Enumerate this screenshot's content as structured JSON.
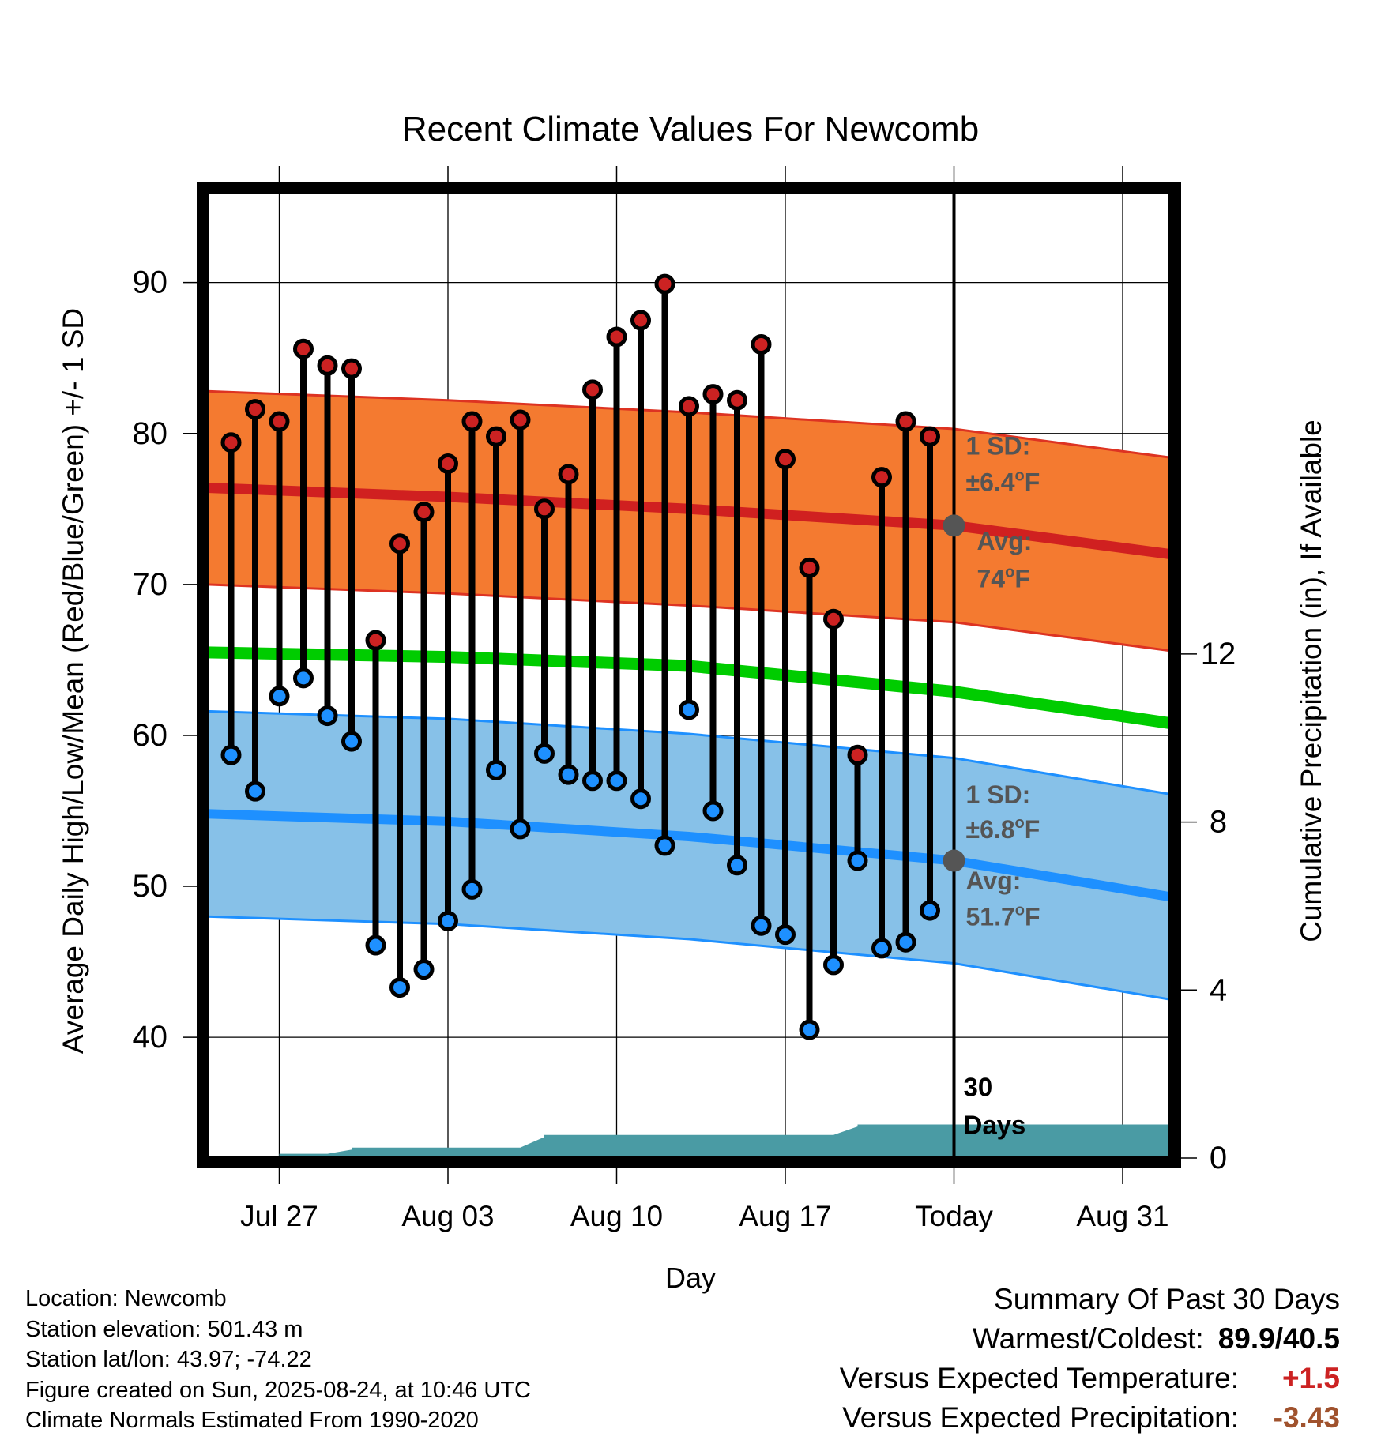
{
  "chart_data": {
    "type": "line",
    "title": "Recent Climate Values For Newcomb",
    "xlabel": "Day",
    "ylabel": "Average Daily High/Low/Mean (Red/Blue/Green) +/- 1 SD",
    "ylabel_right": "Cumulative Precipitation (in), If Available",
    "x_tick_labels": [
      "Jul 27",
      "Aug 03",
      "Aug 10",
      "Aug 17",
      "Today",
      "Aug 31"
    ],
    "x_tick_dates": [
      "2025-07-27",
      "2025-08-03",
      "2025-08-10",
      "2025-08-17",
      "2025-08-24",
      "2025-08-31"
    ],
    "today": "2025-08-24",
    "x_range": [
      "2025-07-24",
      "2025-09-02"
    ],
    "y_ticks": [
      40,
      50,
      60,
      70,
      80,
      90
    ],
    "y_range": [
      32,
      96
    ],
    "y2_ticks": [
      0,
      4,
      8,
      12
    ],
    "y2_range": [
      0,
      23
    ],
    "grid": true,
    "daily_dates": [
      "2025-07-25",
      "2025-07-26",
      "2025-07-27",
      "2025-07-28",
      "2025-07-29",
      "2025-07-30",
      "2025-07-31",
      "2025-08-01",
      "2025-08-02",
      "2025-08-03",
      "2025-08-04",
      "2025-08-05",
      "2025-08-06",
      "2025-08-07",
      "2025-08-08",
      "2025-08-09",
      "2025-08-10",
      "2025-08-11",
      "2025-08-12",
      "2025-08-13",
      "2025-08-14",
      "2025-08-15",
      "2025-08-16",
      "2025-08-17",
      "2025-08-18",
      "2025-08-19",
      "2025-08-20",
      "2025-08-21",
      "2025-08-22",
      "2025-08-23"
    ],
    "series": [
      {
        "name": "High",
        "color": "#cc2222",
        "values": [
          79.4,
          81.6,
          80.8,
          85.6,
          84.5,
          84.3,
          66.3,
          72.7,
          74.8,
          78.0,
          80.8,
          79.8,
          80.9,
          75.0,
          77.3,
          82.9,
          86.4,
          87.5,
          89.9,
          81.8,
          82.6,
          82.2,
          85.9,
          78.3,
          71.1,
          67.7,
          58.7,
          77.1,
          80.8,
          79.8
        ]
      },
      {
        "name": "Low",
        "color": "#1e90ff",
        "values": [
          58.7,
          56.3,
          62.6,
          63.8,
          61.3,
          59.6,
          46.1,
          43.3,
          44.5,
          47.7,
          49.8,
          57.7,
          53.8,
          58.8,
          57.4,
          57.0,
          57.0,
          55.8,
          52.7,
          61.7,
          55.0,
          51.4,
          47.4,
          46.8,
          40.5,
          44.8,
          51.7,
          45.9,
          46.3,
          48.4
        ]
      },
      {
        "name": "Normal High",
        "color": "#d02020",
        "dates": [
          "2025-07-24",
          "2025-08-03",
          "2025-08-13",
          "2025-08-24",
          "2025-09-02"
        ],
        "values": [
          76.4,
          75.8,
          75.0,
          73.9,
          72.0
        ],
        "sd": 6.4
      },
      {
        "name": "Normal Mean",
        "color": "#00cc00",
        "dates": [
          "2025-07-24",
          "2025-08-03",
          "2025-08-13",
          "2025-08-24",
          "2025-09-02"
        ],
        "values": [
          65.5,
          65.2,
          64.6,
          62.9,
          60.8
        ]
      },
      {
        "name": "Normal Low",
        "color": "#1e90ff",
        "dates": [
          "2025-07-24",
          "2025-08-03",
          "2025-08-13",
          "2025-08-24",
          "2025-09-02"
        ],
        "values": [
          54.8,
          54.3,
          53.3,
          51.7,
          49.3
        ],
        "sd": 6.8
      },
      {
        "name": "Cumulative Precipitation",
        "color": "#4a9ba4",
        "axis": "right",
        "dates": [
          "2025-07-24",
          "2025-07-27",
          "2025-07-27",
          "2025-07-29",
          "2025-07-30",
          "2025-07-30",
          "2025-08-06",
          "2025-08-07",
          "2025-08-07",
          "2025-08-19",
          "2025-08-20",
          "2025-08-20",
          "2025-09-02"
        ],
        "values": [
          0.0,
          0.0,
          0.1,
          0.1,
          0.2,
          0.25,
          0.25,
          0.5,
          0.55,
          0.55,
          0.75,
          0.8,
          0.8
        ]
      }
    ],
    "annotations": {
      "high_sd_label": "1 SD:",
      "high_sd_value": "±6.4",
      "high_avg_label": "Avg:",
      "high_avg_value": "74",
      "low_sd_label": "1 SD:",
      "low_sd_value": "±6.8",
      "low_avg_label": "Avg:",
      "low_avg_value": "51.7",
      "degree_unit": "o",
      "f_unit": "F",
      "days_count": "30",
      "days_label": "Days"
    },
    "colors": {
      "high_band": "#f47a30",
      "high_edge": "#dd3322",
      "low_band": "#87c1e8",
      "low_edge": "#1e90ff",
      "mean": "#00cc00",
      "precip": "#4a9ba4",
      "annotation": "#555555"
    }
  },
  "footer": {
    "location": "Location: Newcomb",
    "elevation": "Station elevation: 501.43 m",
    "latlon": "Station lat/lon: 43.97; -74.22",
    "created": "Figure created on Sun, 2025-08-24, at 10:46 UTC",
    "normals": "Climate Normals Estimated From 1990-2020"
  },
  "summary": {
    "title": "Summary Of Past 30 Days",
    "warmest_label": "Warmest/Coldest:",
    "warmest_value": "89.9/40.5",
    "temp_label": "Versus Expected Temperature:",
    "temp_value": "+1.5",
    "precip_label": "Versus Expected Precipitation:",
    "precip_value": "-3.43"
  }
}
